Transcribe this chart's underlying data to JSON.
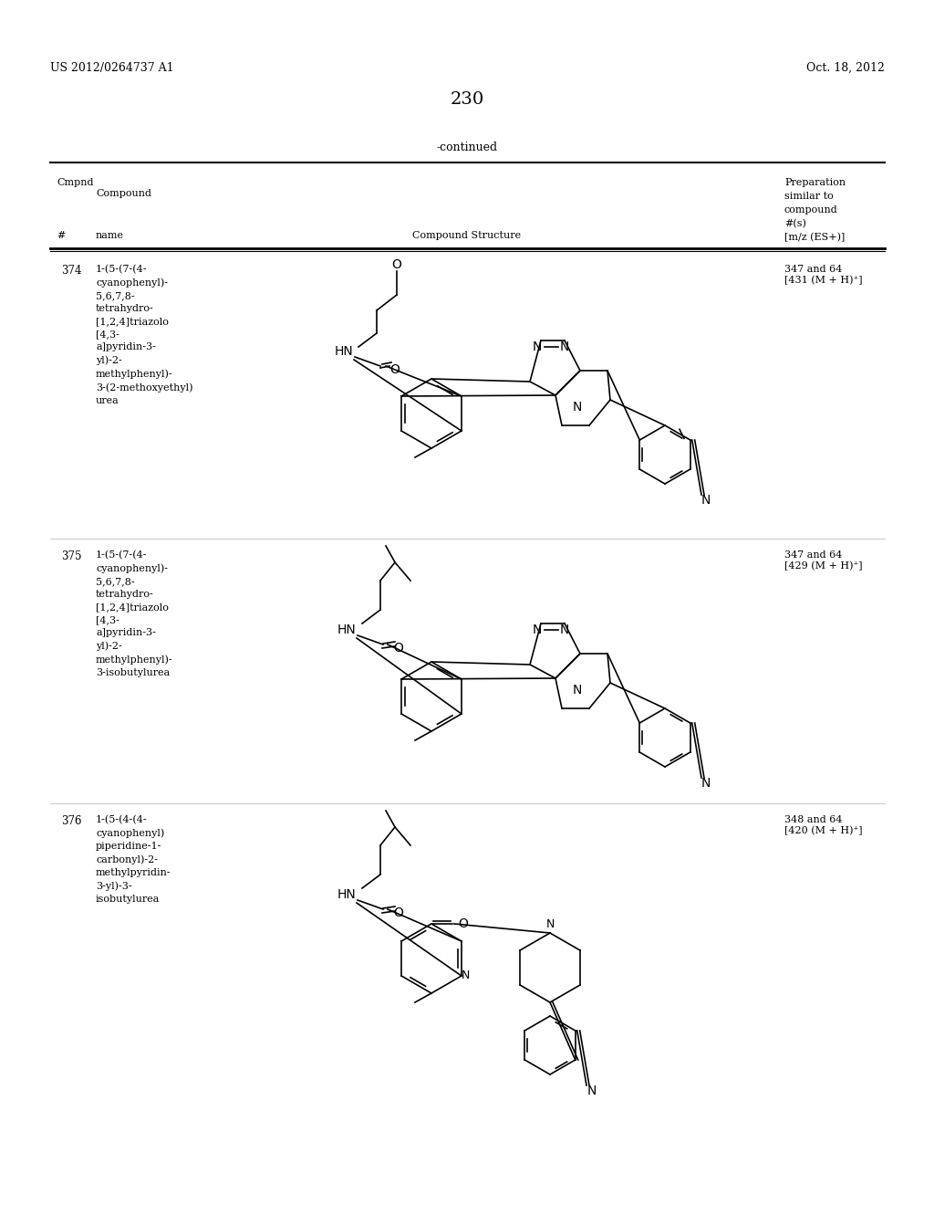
{
  "page_number": "230",
  "patent_number": "US 2012/0264737 A1",
  "patent_date": "Oct. 18, 2012",
  "continued_label": "-continued",
  "background_color": "#ffffff",
  "text_color": "#000000",
  "table_header": {
    "col1_label1": "Cmpnd",
    "col1_label2": "#",
    "col2_label1": "Compound",
    "col2_label2": "name",
    "col3_label": "Compound Structure",
    "col4_label1": "Preparation",
    "col4_label2": "similar to",
    "col4_label3": "compound",
    "col4_label4": "#(s)",
    "col4_label5": "[m/z (ES+)]"
  },
  "compounds": [
    {
      "number": "374",
      "name": "1-(5-(7-(4-\ncyanophenyl)-\n5,6,7,8-\ntetrahydro-\n[1,2,4]triazolo\n[4,3-\na]pyridin-3-\nyl)-2-\nmethylphenyl)-\n3-(2-methoxyethyl)\nurea",
      "prep": "347 and 64\n[431 (M + H)⁺]"
    },
    {
      "number": "375",
      "name": "1-(5-(7-(4-\ncyanophenyl)-\n5,6,7,8-\ntetrahydro-\n[1,2,4]triazolo\n[4,3-\na]pyridin-3-\nyl)-2-\nmethylphenyl)-\n3-isobutylurea",
      "prep": "347 and 64\n[429 (M + H)⁺]"
    },
    {
      "number": "376",
      "name": "1-(5-(4-(4-\ncyanophenyl)\npiperidine-1-\ncarbonyl)-2-\nmethylpyridin-\n3-yl)-3-\nisobutylurea",
      "prep": "348 and 64\n[420 (M + H)⁺]"
    }
  ]
}
